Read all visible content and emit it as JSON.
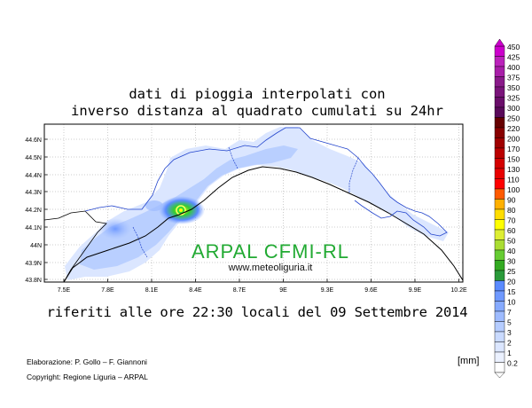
{
  "title_line1": "dati di pioggia interpolati con",
  "title_line2": "inverso distanza al quadrato cumulati su 24hr",
  "subtitle": "riferiti alle ore 22:30 locali del 09 Settembre 2014",
  "credit_elaboration": "Elaborazione: P. Gollo – F. Giannoni",
  "credit_copyright": "Copyright: Regione Liguria – ARPAL",
  "unit_label": "[mm]",
  "watermark_title": "ARPAL CFMI-RL",
  "watermark_url": "www.meteoliguria.it",
  "lat_labels": [
    "44.6N",
    "44.5N",
    "44.4N",
    "44.3N",
    "44.2N",
    "44.1N",
    "44N",
    "43.9N",
    "43.8N"
  ],
  "lon_labels": [
    "7.5E",
    "7.8E",
    "8.1E",
    "8.4E",
    "8.7E",
    "9E",
    "9.3E",
    "9.6E",
    "9.9E",
    "10.2E"
  ],
  "legend": [
    {
      "label": "450",
      "color": "#cc00cc"
    },
    {
      "label": "425",
      "color": "#bb22bb"
    },
    {
      "label": "400",
      "color": "#a81ea8"
    },
    {
      "label": "375",
      "color": "#8a1a8a"
    },
    {
      "label": "350",
      "color": "#7a147a"
    },
    {
      "label": "325",
      "color": "#6a0e6a"
    },
    {
      "label": "300",
      "color": "#5a0a5a"
    },
    {
      "label": "250",
      "color": "#660000"
    },
    {
      "label": "220",
      "color": "#880000"
    },
    {
      "label": "200",
      "color": "#a00000"
    },
    {
      "label": "170",
      "color": "#bb0000"
    },
    {
      "label": "150",
      "color": "#d40000"
    },
    {
      "label": "130",
      "color": "#e80000"
    },
    {
      "label": "110",
      "color": "#ff0000"
    },
    {
      "label": "100",
      "color": "#ff5a00"
    },
    {
      "label": "90",
      "color": "#ffb000"
    },
    {
      "label": "80",
      "color": "#ffdd00"
    },
    {
      "label": "70",
      "color": "#ffff00"
    },
    {
      "label": "60",
      "color": "#ddee33"
    },
    {
      "label": "50",
      "color": "#aadd33"
    },
    {
      "label": "40",
      "color": "#66cc33"
    },
    {
      "label": "30",
      "color": "#33aa22"
    },
    {
      "label": "25",
      "color": "#2a9a3a"
    },
    {
      "label": "20",
      "color": "#5a8aff"
    },
    {
      "label": "15",
      "color": "#6f99ff"
    },
    {
      "label": "10",
      "color": "#86aaff"
    },
    {
      "label": "7",
      "color": "#9ebbff"
    },
    {
      "label": "5",
      "color": "#b5ccff"
    },
    {
      "label": "3",
      "color": "#c9daff"
    },
    {
      "label": "2",
      "color": "#dbe6ff"
    },
    {
      "label": "1",
      "color": "#ebf1ff"
    },
    {
      "label": "0.2",
      "color": "#ffffff"
    }
  ]
}
